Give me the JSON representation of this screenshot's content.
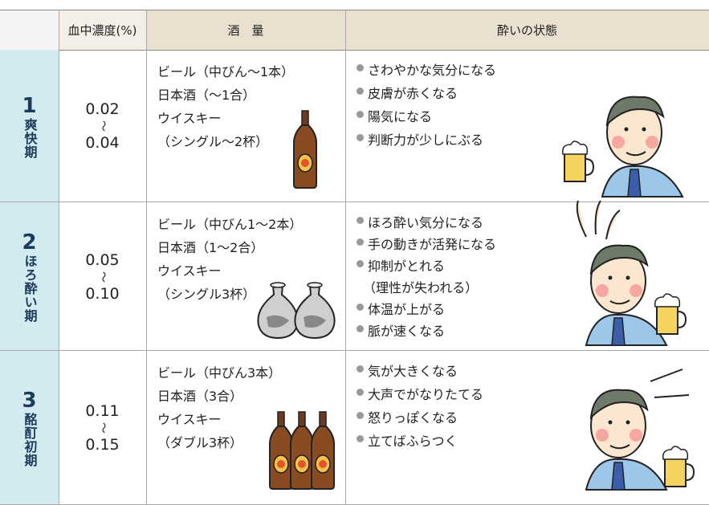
{
  "header": {
    "cells": [
      "血中濃度(%)",
      "酒　量",
      "酔いの状態"
    ]
  },
  "rows": [
    {
      "number": "1",
      "stage": "爽快期",
      "concentration": {
        "from": "0.02",
        "sep": "〜",
        "to": "0.04"
      },
      "amount": [
        "ビール（中びん〜1本）",
        "日本酒（〜1合）",
        "ウイスキー",
        "（シングル〜2杯）"
      ],
      "states": [
        [
          "さわやかな気分になる"
        ],
        [
          "皮膚が赤くなる"
        ],
        [
          "陽気になる"
        ],
        [
          "判断力が少しにぶる"
        ]
      ]
    },
    {
      "number": "2",
      "stage": "ほろ酔い期",
      "concentration": {
        "from": "0.05",
        "sep": "〜",
        "to": "0.10"
      },
      "amount": [
        "ビール（中びん1〜2本）",
        "日本酒（1〜2合）",
        "ウイスキー",
        "（シングル3杯）"
      ],
      "states": [
        [
          "ほろ酔い気分になる"
        ],
        [
          "手の動きが活発になる"
        ],
        [
          "抑制がとれる",
          "（理性が失われる）"
        ],
        [
          "体温が上がる"
        ],
        [
          "脈が速くなる"
        ]
      ]
    },
    {
      "number": "3",
      "stage": "酩酊初期",
      "concentration": {
        "from": "0.11",
        "sep": "〜",
        "to": "0.15"
      },
      "amount": [
        "ビール（中びん3本）",
        "日本酒（3合）",
        "ウイスキー",
        "（ダブル3杯）"
      ],
      "states": [
        [
          "気が大きくなる"
        ],
        [
          "大声でがなりたてる"
        ],
        [
          "怒りっぽくなる"
        ],
        [
          "立てばふらつく"
        ]
      ]
    }
  ]
}
